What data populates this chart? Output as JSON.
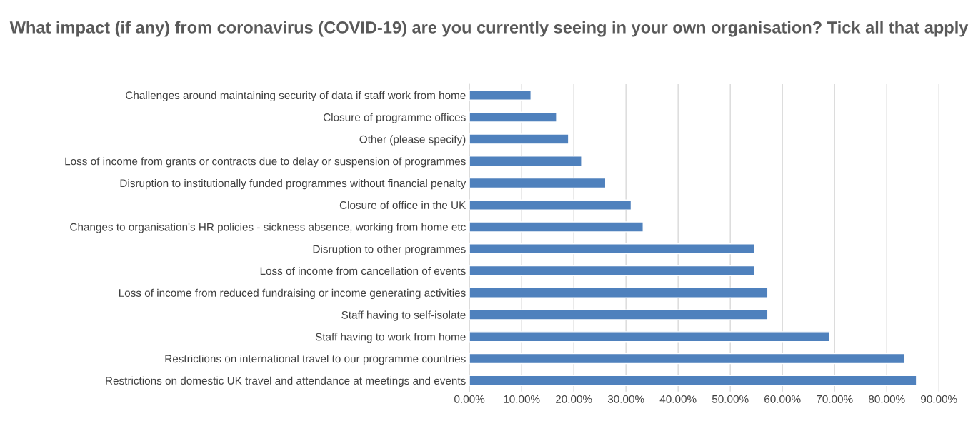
{
  "chart_data": {
    "type": "bar",
    "orientation": "horizontal",
    "title": "What impact (if any) from coronavirus (COVID-19) are you currently seeing in your own organisation? Tick all that apply",
    "categories": [
      "Challenges around maintaining security of data if staff work from home",
      "Closure of programme offices",
      "Other (please specify)",
      "Loss of income from grants or contracts due to delay or suspension of programmes",
      "Disruption to institutionally funded programmes without financial penalty",
      "Closure of office in the UK",
      "Changes to organisation's HR policies - sickness absence, working from home etc",
      "Disruption to other programmes",
      "Loss of income from cancellation of events",
      "Loss of income from reduced fundraising or income generating activities",
      "Staff having to self-isolate",
      "Staff having to work from home",
      "Restrictions on international travel to our programme countries",
      "Restrictions on domestic UK travel and attendance at meetings and events"
    ],
    "values": [
      11.8,
      16.7,
      19.0,
      21.5,
      26.1,
      31.0,
      33.3,
      54.7,
      54.7,
      57.2,
      57.2,
      69.1,
      83.4,
      85.7
    ],
    "color": "#4f81bd",
    "xlim": [
      0,
      90
    ],
    "xticks": [
      {
        "value": 0,
        "label": "0.00%"
      },
      {
        "value": 10,
        "label": "10.00%"
      },
      {
        "value": 20,
        "label": "20.00%"
      },
      {
        "value": 30,
        "label": "30.00%"
      },
      {
        "value": 40,
        "label": "40.00%"
      },
      {
        "value": 50,
        "label": "50.00%"
      },
      {
        "value": 60,
        "label": "60.00%"
      },
      {
        "value": 70,
        "label": "70.00%"
      },
      {
        "value": 80,
        "label": "80.00%"
      },
      {
        "value": 90,
        "label": "90.00%"
      }
    ],
    "grid": "x"
  }
}
